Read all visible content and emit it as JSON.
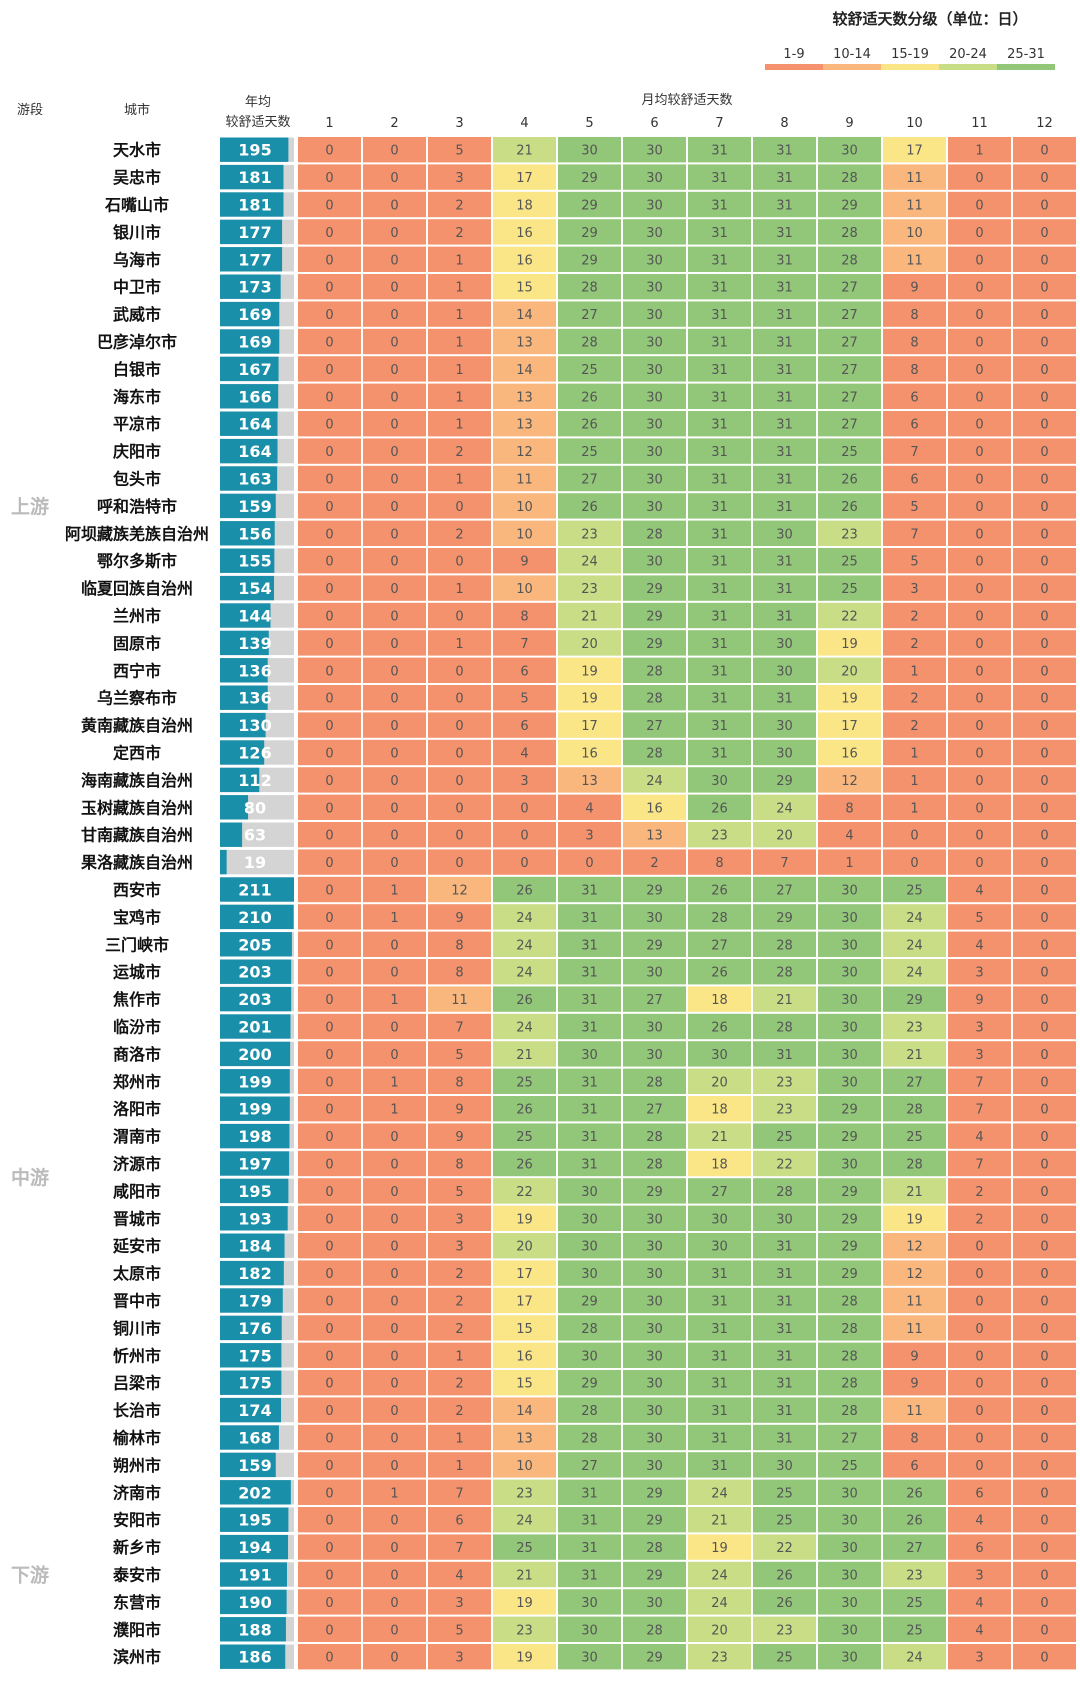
{
  "chart_data": {
    "type": "heatmap",
    "legend_title": "较舒适天数分级（单位：日）",
    "legend": [
      {
        "label": "1-9",
        "color": "#F4926E"
      },
      {
        "label": "10-14",
        "color": "#F9B77E"
      },
      {
        "label": "15-19",
        "color": "#FAE686"
      },
      {
        "label": "20-24",
        "color": "#C8DD86"
      },
      {
        "label": "25-31",
        "color": "#92C77A"
      }
    ],
    "zero_color": "#F4926E",
    "bar_color": "#1A8FAA",
    "bar_bg_color": "#D4D4D4",
    "bar_max": 211,
    "headers": {
      "segment": "游段",
      "city": "城市",
      "annual_line1": "年均",
      "annual_line2": "较舒适天数",
      "monthly": "月均较舒适天数"
    },
    "months": [
      "1",
      "2",
      "3",
      "4",
      "5",
      "6",
      "7",
      "8",
      "9",
      "10",
      "11",
      "12"
    ],
    "segments": [
      {
        "name": "上游",
        "rows": [
          {
            "city": "天水市",
            "annual": 195,
            "monthly": [
              0,
              0,
              5,
              21,
              30,
              30,
              31,
              31,
              30,
              17,
              1,
              0
            ]
          },
          {
            "city": "吴忠市",
            "annual": 181,
            "monthly": [
              0,
              0,
              3,
              17,
              29,
              30,
              31,
              31,
              28,
              11,
              0,
              0
            ]
          },
          {
            "city": "石嘴山市",
            "annual": 181,
            "monthly": [
              0,
              0,
              2,
              18,
              29,
              30,
              31,
              31,
              29,
              11,
              0,
              0
            ]
          },
          {
            "city": "银川市",
            "annual": 177,
            "monthly": [
              0,
              0,
              2,
              16,
              29,
              30,
              31,
              31,
              28,
              10,
              0,
              0
            ]
          },
          {
            "city": "乌海市",
            "annual": 177,
            "monthly": [
              0,
              0,
              1,
              16,
              29,
              30,
              31,
              31,
              28,
              11,
              0,
              0
            ]
          },
          {
            "city": "中卫市",
            "annual": 173,
            "monthly": [
              0,
              0,
              1,
              15,
              28,
              30,
              31,
              31,
              27,
              9,
              0,
              0
            ]
          },
          {
            "city": "武威市",
            "annual": 169,
            "monthly": [
              0,
              0,
              1,
              14,
              27,
              30,
              31,
              31,
              27,
              8,
              0,
              0
            ]
          },
          {
            "city": "巴彦淖尔市",
            "annual": 169,
            "monthly": [
              0,
              0,
              1,
              13,
              28,
              30,
              31,
              31,
              27,
              8,
              0,
              0
            ]
          },
          {
            "city": "白银市",
            "annual": 167,
            "monthly": [
              0,
              0,
              1,
              14,
              25,
              30,
              31,
              31,
              27,
              8,
              0,
              0
            ]
          },
          {
            "city": "海东市",
            "annual": 166,
            "monthly": [
              0,
              0,
              1,
              13,
              26,
              30,
              31,
              31,
              27,
              6,
              0,
              0
            ]
          },
          {
            "city": "平凉市",
            "annual": 164,
            "monthly": [
              0,
              0,
              1,
              13,
              26,
              30,
              31,
              31,
              27,
              6,
              0,
              0
            ]
          },
          {
            "city": "庆阳市",
            "annual": 164,
            "monthly": [
              0,
              0,
              2,
              12,
              25,
              30,
              31,
              31,
              25,
              7,
              0,
              0
            ]
          },
          {
            "city": "包头市",
            "annual": 163,
            "monthly": [
              0,
              0,
              1,
              11,
              27,
              30,
              31,
              31,
              26,
              6,
              0,
              0
            ]
          },
          {
            "city": "呼和浩特市",
            "annual": 159,
            "monthly": [
              0,
              0,
              0,
              10,
              26,
              30,
              31,
              31,
              26,
              5,
              0,
              0
            ]
          },
          {
            "city": "阿坝藏族羌族自治州",
            "annual": 156,
            "monthly": [
              0,
              0,
              2,
              10,
              23,
              28,
              31,
              30,
              23,
              7,
              0,
              0
            ]
          },
          {
            "city": "鄂尔多斯市",
            "annual": 155,
            "monthly": [
              0,
              0,
              0,
              9,
              24,
              30,
              31,
              31,
              25,
              5,
              0,
              0
            ]
          },
          {
            "city": "临夏回族自治州",
            "annual": 154,
            "monthly": [
              0,
              0,
              1,
              10,
              23,
              29,
              31,
              31,
              25,
              3,
              0,
              0
            ]
          },
          {
            "city": "兰州市",
            "annual": 144,
            "monthly": [
              0,
              0,
              0,
              8,
              21,
              29,
              31,
              31,
              22,
              2,
              0,
              0
            ]
          },
          {
            "city": "固原市",
            "annual": 139,
            "monthly": [
              0,
              0,
              1,
              7,
              20,
              29,
              31,
              30,
              19,
              2,
              0,
              0
            ]
          },
          {
            "city": "西宁市",
            "annual": 136,
            "monthly": [
              0,
              0,
              0,
              6,
              19,
              28,
              31,
              30,
              20,
              1,
              0,
              0
            ]
          },
          {
            "city": "乌兰察布市",
            "annual": 136,
            "monthly": [
              0,
              0,
              0,
              5,
              19,
              28,
              31,
              31,
              19,
              2,
              0,
              0
            ]
          },
          {
            "city": "黄南藏族自治州",
            "annual": 130,
            "monthly": [
              0,
              0,
              0,
              6,
              17,
              27,
              31,
              30,
              17,
              2,
              0,
              0
            ]
          },
          {
            "city": "定西市",
            "annual": 126,
            "monthly": [
              0,
              0,
              0,
              4,
              16,
              28,
              31,
              30,
              16,
              1,
              0,
              0
            ]
          },
          {
            "city": "海南藏族自治州",
            "annual": 112,
            "monthly": [
              0,
              0,
              0,
              3,
              13,
              24,
              30,
              29,
              12,
              1,
              0,
              0
            ]
          },
          {
            "city": "玉树藏族自治州",
            "annual": 80,
            "monthly": [
              0,
              0,
              0,
              0,
              4,
              16,
              26,
              24,
              8,
              1,
              0,
              0
            ]
          },
          {
            "city": "甘南藏族自治州",
            "annual": 63,
            "monthly": [
              0,
              0,
              0,
              0,
              3,
              13,
              23,
              20,
              4,
              0,
              0,
              0
            ]
          },
          {
            "city": "果洛藏族自治州",
            "annual": 19,
            "monthly": [
              0,
              0,
              0,
              0,
              0,
              2,
              8,
              7,
              1,
              0,
              0,
              0
            ]
          }
        ]
      },
      {
        "name": "中游",
        "rows": [
          {
            "city": "西安市",
            "annual": 211,
            "monthly": [
              0,
              1,
              12,
              26,
              31,
              29,
              26,
              27,
              30,
              25,
              4,
              0
            ]
          },
          {
            "city": "宝鸡市",
            "annual": 210,
            "monthly": [
              0,
              1,
              9,
              24,
              31,
              30,
              28,
              29,
              30,
              24,
              5,
              0
            ]
          },
          {
            "city": "三门峡市",
            "annual": 205,
            "monthly": [
              0,
              0,
              8,
              24,
              31,
              29,
              27,
              28,
              30,
              24,
              4,
              0
            ]
          },
          {
            "city": "运城市",
            "annual": 203,
            "monthly": [
              0,
              0,
              8,
              24,
              31,
              30,
              26,
              28,
              30,
              24,
              3,
              0
            ]
          },
          {
            "city": "焦作市",
            "annual": 203,
            "monthly": [
              0,
              1,
              11,
              26,
              31,
              27,
              18,
              21,
              30,
              29,
              9,
              0
            ]
          },
          {
            "city": "临汾市",
            "annual": 201,
            "monthly": [
              0,
              0,
              7,
              24,
              31,
              30,
              26,
              28,
              30,
              23,
              3,
              0
            ]
          },
          {
            "city": "商洛市",
            "annual": 200,
            "monthly": [
              0,
              0,
              5,
              21,
              30,
              30,
              30,
              31,
              30,
              21,
              3,
              0
            ]
          },
          {
            "city": "郑州市",
            "annual": 199,
            "monthly": [
              0,
              1,
              8,
              25,
              31,
              28,
              20,
              23,
              30,
              27,
              7,
              0
            ]
          },
          {
            "city": "洛阳市",
            "annual": 199,
            "monthly": [
              0,
              1,
              9,
              26,
              31,
              27,
              18,
              23,
              29,
              28,
              7,
              0
            ]
          },
          {
            "city": "渭南市",
            "annual": 198,
            "monthly": [
              0,
              0,
              9,
              25,
              31,
              28,
              21,
              25,
              29,
              25,
              4,
              0
            ]
          },
          {
            "city": "济源市",
            "annual": 197,
            "monthly": [
              0,
              0,
              8,
              26,
              31,
              28,
              18,
              22,
              30,
              28,
              7,
              0
            ]
          },
          {
            "city": "咸阳市",
            "annual": 195,
            "monthly": [
              0,
              0,
              5,
              22,
              30,
              29,
              27,
              28,
              29,
              21,
              2,
              0
            ]
          },
          {
            "city": "晋城市",
            "annual": 193,
            "monthly": [
              0,
              0,
              3,
              19,
              30,
              30,
              30,
              30,
              29,
              19,
              2,
              0
            ]
          },
          {
            "city": "延安市",
            "annual": 184,
            "monthly": [
              0,
              0,
              3,
              20,
              30,
              30,
              30,
              31,
              29,
              12,
              0,
              0
            ]
          },
          {
            "city": "太原市",
            "annual": 182,
            "monthly": [
              0,
              0,
              2,
              17,
              30,
              30,
              31,
              31,
              29,
              12,
              0,
              0
            ]
          },
          {
            "city": "晋中市",
            "annual": 179,
            "monthly": [
              0,
              0,
              2,
              17,
              29,
              30,
              31,
              31,
              28,
              11,
              0,
              0
            ]
          },
          {
            "city": "铜川市",
            "annual": 176,
            "monthly": [
              0,
              0,
              2,
              15,
              28,
              30,
              31,
              31,
              28,
              11,
              0,
              0
            ]
          },
          {
            "city": "忻州市",
            "annual": 175,
            "monthly": [
              0,
              0,
              1,
              16,
              30,
              30,
              31,
              31,
              28,
              9,
              0,
              0
            ]
          },
          {
            "city": "吕梁市",
            "annual": 175,
            "monthly": [
              0,
              0,
              2,
              15,
              29,
              30,
              31,
              31,
              28,
              9,
              0,
              0
            ]
          },
          {
            "city": "长治市",
            "annual": 174,
            "monthly": [
              0,
              0,
              2,
              14,
              28,
              30,
              31,
              31,
              28,
              11,
              0,
              0
            ]
          },
          {
            "city": "榆林市",
            "annual": 168,
            "monthly": [
              0,
              0,
              1,
              13,
              28,
              30,
              31,
              31,
              27,
              8,
              0,
              0
            ]
          },
          {
            "city": "朔州市",
            "annual": 159,
            "monthly": [
              0,
              0,
              1,
              10,
              27,
              30,
              31,
              30,
              25,
              6,
              0,
              0
            ]
          }
        ]
      },
      {
        "name": "下游",
        "rows": [
          {
            "city": "济南市",
            "annual": 202,
            "monthly": [
              0,
              1,
              7,
              23,
              31,
              29,
              24,
              25,
              30,
              26,
              6,
              0
            ]
          },
          {
            "city": "安阳市",
            "annual": 195,
            "monthly": [
              0,
              0,
              6,
              24,
              31,
              29,
              21,
              25,
              30,
              26,
              4,
              0
            ]
          },
          {
            "city": "新乡市",
            "annual": 194,
            "monthly": [
              0,
              0,
              7,
              25,
              31,
              28,
              19,
              22,
              30,
              27,
              6,
              0
            ]
          },
          {
            "city": "泰安市",
            "annual": 191,
            "monthly": [
              0,
              0,
              4,
              21,
              31,
              29,
              24,
              26,
              30,
              23,
              3,
              0
            ]
          },
          {
            "city": "东营市",
            "annual": 190,
            "monthly": [
              0,
              0,
              3,
              19,
              30,
              30,
              24,
              26,
              30,
              25,
              4,
              0
            ]
          },
          {
            "city": "濮阳市",
            "annual": 188,
            "monthly": [
              0,
              0,
              5,
              23,
              30,
              28,
              20,
              23,
              30,
              25,
              4,
              0
            ]
          },
          {
            "city": "滨州市",
            "annual": 186,
            "monthly": [
              0,
              0,
              3,
              19,
              30,
              29,
              23,
              25,
              30,
              24,
              3,
              0
            ]
          }
        ]
      }
    ]
  }
}
